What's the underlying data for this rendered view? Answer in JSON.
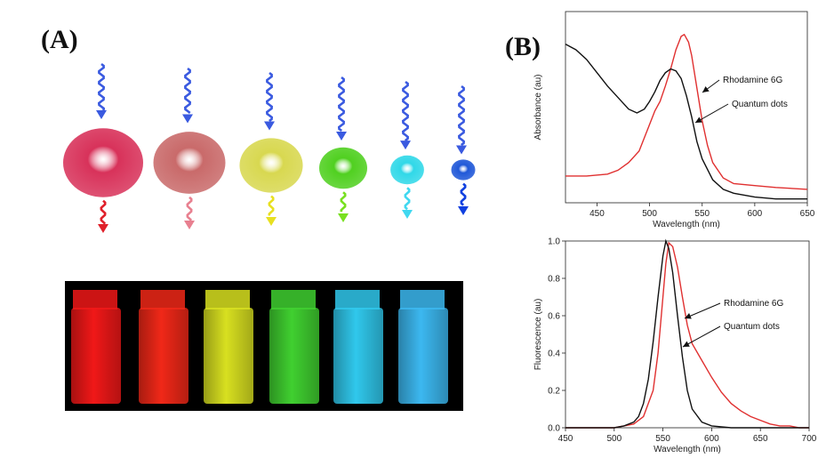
{
  "panels": {
    "a_label": "(A)",
    "b_label": "(B)"
  },
  "quantum_dots": [
    {
      "color": "#d8325a",
      "emit": "#e0202a",
      "r": 1.0
    },
    {
      "color": "#c96a6a",
      "emit": "#e88090",
      "r": 0.9
    },
    {
      "color": "#d8d850",
      "emit": "#e8e020",
      "r": 0.79
    },
    {
      "color": "#50d020",
      "emit": "#78e020",
      "r": 0.6
    },
    {
      "color": "#30d8e8",
      "emit": "#40d8f0",
      "r": 0.42
    },
    {
      "color": "#2058d8",
      "emit": "#1040e0",
      "r": 0.3
    }
  ],
  "vials": [
    {
      "color": "#f01818"
    },
    {
      "color": "#f02818"
    },
    {
      "color": "#d8e020"
    },
    {
      "color": "#40d030"
    },
    {
      "color": "#30c8ec"
    },
    {
      "color": "#3cb8f0"
    }
  ],
  "chart_data": [
    {
      "type": "line",
      "xlabel": "Wavelength (nm)",
      "ylabel": "Absorbance (au)",
      "xlim": [
        420,
        650
      ],
      "xticks": [
        450,
        500,
        550,
        600,
        650
      ],
      "ylim": [
        0,
        1
      ],
      "yticks_shown": false,
      "series": [
        {
          "name": "Rhodamine 6G",
          "color": "#e03030",
          "x": [
            420,
            440,
            460,
            470,
            480,
            490,
            500,
            505,
            510,
            515,
            520,
            525,
            530,
            533,
            537,
            540,
            545,
            550,
            555,
            560,
            570,
            580,
            600,
            620,
            650
          ],
          "y": [
            0.14,
            0.14,
            0.15,
            0.17,
            0.21,
            0.27,
            0.41,
            0.48,
            0.53,
            0.61,
            0.7,
            0.8,
            0.87,
            0.88,
            0.84,
            0.77,
            0.6,
            0.43,
            0.3,
            0.21,
            0.13,
            0.1,
            0.09,
            0.08,
            0.07
          ]
        },
        {
          "name": "Quantum dots",
          "color": "#111111",
          "x": [
            420,
            430,
            440,
            450,
            460,
            470,
            480,
            488,
            495,
            500,
            505,
            510,
            515,
            520,
            525,
            530,
            535,
            540,
            545,
            550,
            560,
            570,
            580,
            600,
            620,
            650
          ],
          "y": [
            0.83,
            0.8,
            0.75,
            0.68,
            0.61,
            0.55,
            0.49,
            0.47,
            0.49,
            0.53,
            0.58,
            0.64,
            0.68,
            0.7,
            0.69,
            0.65,
            0.56,
            0.45,
            0.32,
            0.23,
            0.12,
            0.07,
            0.05,
            0.03,
            0.02,
            0.02
          ]
        }
      ],
      "annotations": [
        {
          "text": "Rhodamine 6G",
          "series": "Rhodamine 6G"
        },
        {
          "text": "Quantum dots",
          "series": "Quantum dots"
        }
      ]
    },
    {
      "type": "line",
      "xlabel": "Wavelength (nm)",
      "ylabel": "Fluorescence (au)",
      "xlim": [
        450,
        700
      ],
      "xticks": [
        450,
        500,
        550,
        600,
        650,
        700
      ],
      "ylim": [
        0,
        1.0
      ],
      "yticks": [
        0.0,
        0.2,
        0.4,
        0.6,
        0.8,
        1.0
      ],
      "ytick_labels": [
        "0.0",
        "0.2",
        "0.4",
        "0.6",
        "0.8",
        "1.0"
      ],
      "series": [
        {
          "name": "Rhodamine 6G",
          "color": "#e03030",
          "x": [
            450,
            500,
            510,
            520,
            530,
            540,
            545,
            550,
            553,
            556,
            560,
            565,
            570,
            575,
            580,
            590,
            600,
            610,
            620,
            630,
            640,
            650,
            660,
            670,
            680,
            690,
            700
          ],
          "y": [
            0.0,
            0.0,
            0.01,
            0.02,
            0.06,
            0.2,
            0.4,
            0.7,
            0.88,
            0.99,
            0.97,
            0.86,
            0.7,
            0.55,
            0.45,
            0.36,
            0.27,
            0.19,
            0.13,
            0.09,
            0.06,
            0.04,
            0.02,
            0.01,
            0.01,
            0.0,
            0.0
          ]
        },
        {
          "name": "Quantum dots",
          "color": "#111111",
          "x": [
            450,
            500,
            510,
            520,
            525,
            530,
            535,
            540,
            545,
            550,
            553,
            556,
            560,
            565,
            570,
            575,
            580,
            590,
            600,
            620,
            650,
            700
          ],
          "y": [
            0.0,
            0.0,
            0.01,
            0.03,
            0.06,
            0.13,
            0.26,
            0.46,
            0.7,
            0.92,
            1.0,
            0.96,
            0.83,
            0.6,
            0.38,
            0.2,
            0.1,
            0.03,
            0.01,
            0.0,
            0.0,
            0.0
          ]
        }
      ],
      "annotations": [
        {
          "text": "Rhodamine 6G",
          "series": "Rhodamine 6G"
        },
        {
          "text": "Quantum dots",
          "series": "Quantum dots"
        }
      ]
    }
  ]
}
